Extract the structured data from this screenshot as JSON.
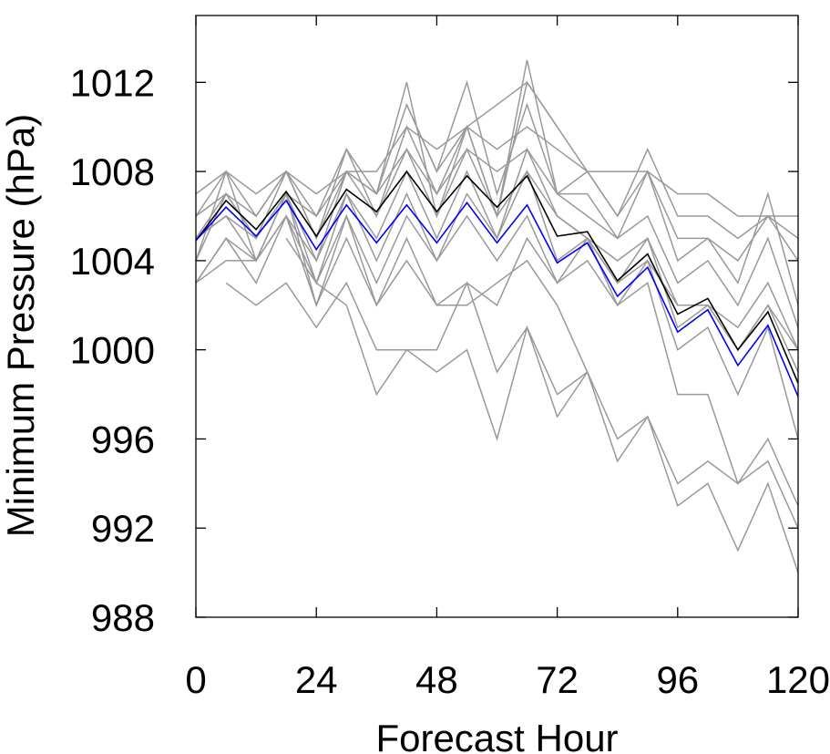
{
  "chart_data": {
    "type": "line",
    "title": "",
    "xlabel": "Forecast Hour",
    "ylabel": "Minimum Pressure (hPa)",
    "xlim": [
      0,
      120
    ],
    "ylim": [
      988,
      1015
    ],
    "x_ticks": [
      0,
      24,
      48,
      72,
      96,
      120
    ],
    "y_ticks": [
      988,
      992,
      996,
      1000,
      1004,
      1008,
      1012
    ],
    "grid": false,
    "legend": "none",
    "colors": {
      "ensemble": "#999999",
      "mean": "#000000",
      "highlight": "#0000ff"
    },
    "x": [
      0,
      6,
      12,
      18,
      24,
      30,
      36,
      42,
      48,
      54,
      60,
      66,
      72,
      78,
      84,
      90,
      96,
      102,
      108,
      114,
      120
    ],
    "series": [
      {
        "role": "ensemble",
        "values": [
          1007,
          1008,
          1007,
          1008,
          1007,
          1008,
          1008,
          1010,
          1009,
          1010,
          1009,
          1010,
          1009,
          1008,
          1008,
          1008,
          1007,
          1007,
          1006,
          1006,
          1006
        ]
      },
      {
        "role": "ensemble",
        "values": [
          1006,
          1008,
          1006,
          1008,
          1006,
          1009,
          1007,
          1011,
          1008,
          1012,
          1007,
          1011,
          1007,
          1008,
          1006,
          1009,
          1006,
          1006,
          1005,
          1006,
          1005
        ]
      },
      {
        "role": "ensemble",
        "values": [
          1005,
          1007,
          1005,
          1008,
          1005,
          1009,
          1006,
          1010,
          1007,
          1010,
          1006,
          1013,
          1007,
          1007,
          1005,
          1008,
          1004,
          1005,
          1003,
          1007,
          1002
        ]
      },
      {
        "role": "ensemble",
        "values": [
          1004,
          1008,
          1004,
          1007,
          1004,
          1008,
          1007,
          1012,
          1006,
          1010,
          1006,
          1012,
          1010,
          1008,
          1006,
          1008,
          1005,
          1005,
          1004,
          1006,
          1004
        ]
      },
      {
        "role": "ensemble",
        "values": [
          1005,
          1006,
          1005,
          1007,
          1006,
          1008,
          1007,
          1009,
          1007,
          1009,
          1008,
          1009,
          1007,
          1006,
          1005,
          1006,
          1003,
          1004,
          1002,
          1005,
          1001
        ]
      },
      {
        "role": "ensemble",
        "values": [
          1003,
          1005,
          1004,
          1006,
          1004,
          1007,
          1005,
          1008,
          1005,
          1008,
          1005,
          1009,
          1006,
          1005,
          1003,
          1004,
          1002,
          1002,
          1000,
          1002,
          1000
        ]
      },
      {
        "role": "ensemble",
        "values": [
          1004,
          1007,
          1005,
          1007,
          1003,
          1007,
          1004,
          1007,
          1004,
          1007,
          1005,
          1008,
          1004,
          1005,
          1003,
          1005,
          1002,
          1002,
          1001,
          1003,
          1000
        ]
      },
      {
        "role": "ensemble",
        "values": [
          1006,
          1007,
          1006,
          1008,
          1005,
          1008,
          1006,
          1009,
          1006,
          1009,
          1006,
          1008,
          1006,
          1005,
          1004,
          1005,
          1001,
          1002,
          1000,
          1002,
          999
        ]
      },
      {
        "role": "ensemble",
        "values": [
          1005,
          1006,
          1004,
          1007,
          1002,
          1006,
          1003,
          1006,
          1004,
          1006,
          1004,
          1006,
          1003,
          1005,
          1002,
          1004,
          1000,
          1001,
          998,
          1001,
          996
        ]
      },
      {
        "role": "ensemble",
        "values": [
          1003,
          1005,
          1003,
          1006,
          1002,
          1005,
          1002,
          1005,
          1002,
          1003,
          1002,
          1005,
          1003,
          1004,
          1002,
          1003,
          998,
          998,
          994,
          996,
          993
        ]
      },
      {
        "role": "ensemble",
        "values": [
          1003,
          1004,
          1004,
          1006,
          1003,
          1006,
          1002,
          1004,
          1002,
          1002,
          1003,
          1004,
          1002,
          999,
          996,
          997,
          994,
          995,
          994,
          995,
          992
        ]
      },
      {
        "role": "ensemble",
        "values": [
          null,
          1003,
          1002,
          1003,
          1001,
          1003,
          1000,
          1000,
          1000,
          1003,
          999,
          1001,
          998,
          999,
          995,
          997,
          993,
          994,
          991,
          994,
          990
        ]
      },
      {
        "role": "ensemble",
        "values": [
          null,
          null,
          null,
          1005,
          1003,
          1002,
          998,
          1000,
          999,
          1000,
          996,
          1001,
          997,
          999,
          null,
          null,
          null,
          null,
          null,
          null,
          null
        ]
      },
      {
        "role": "ensemble",
        "values": [
          null,
          null,
          null,
          null,
          null,
          null,
          null,
          1011,
          1008,
          1010,
          1011,
          1012,
          1010,
          null,
          null,
          null,
          null,
          null,
          null,
          null,
          null
        ]
      },
      {
        "role": "mean",
        "values": [
          1004.9,
          1006.7,
          1005.4,
          1007.1,
          1005.1,
          1007.2,
          1006.2,
          1008.0,
          1006.2,
          1007.8,
          1006.4,
          1007.8,
          1005.1,
          1005.3,
          1003.1,
          1004.3,
          1001.6,
          1002.3,
          1000.0,
          1001.7,
          998.5
        ]
      },
      {
        "role": "highlight",
        "values": [
          1004.9,
          1006.4,
          1005.1,
          1006.7,
          1004.5,
          1006.5,
          1004.8,
          1006.5,
          1004.8,
          1006.6,
          1004.8,
          1006.5,
          1003.9,
          1004.8,
          1002.4,
          1003.7,
          1000.8,
          1001.8,
          999.3,
          1001.1,
          997.9
        ]
      }
    ]
  }
}
